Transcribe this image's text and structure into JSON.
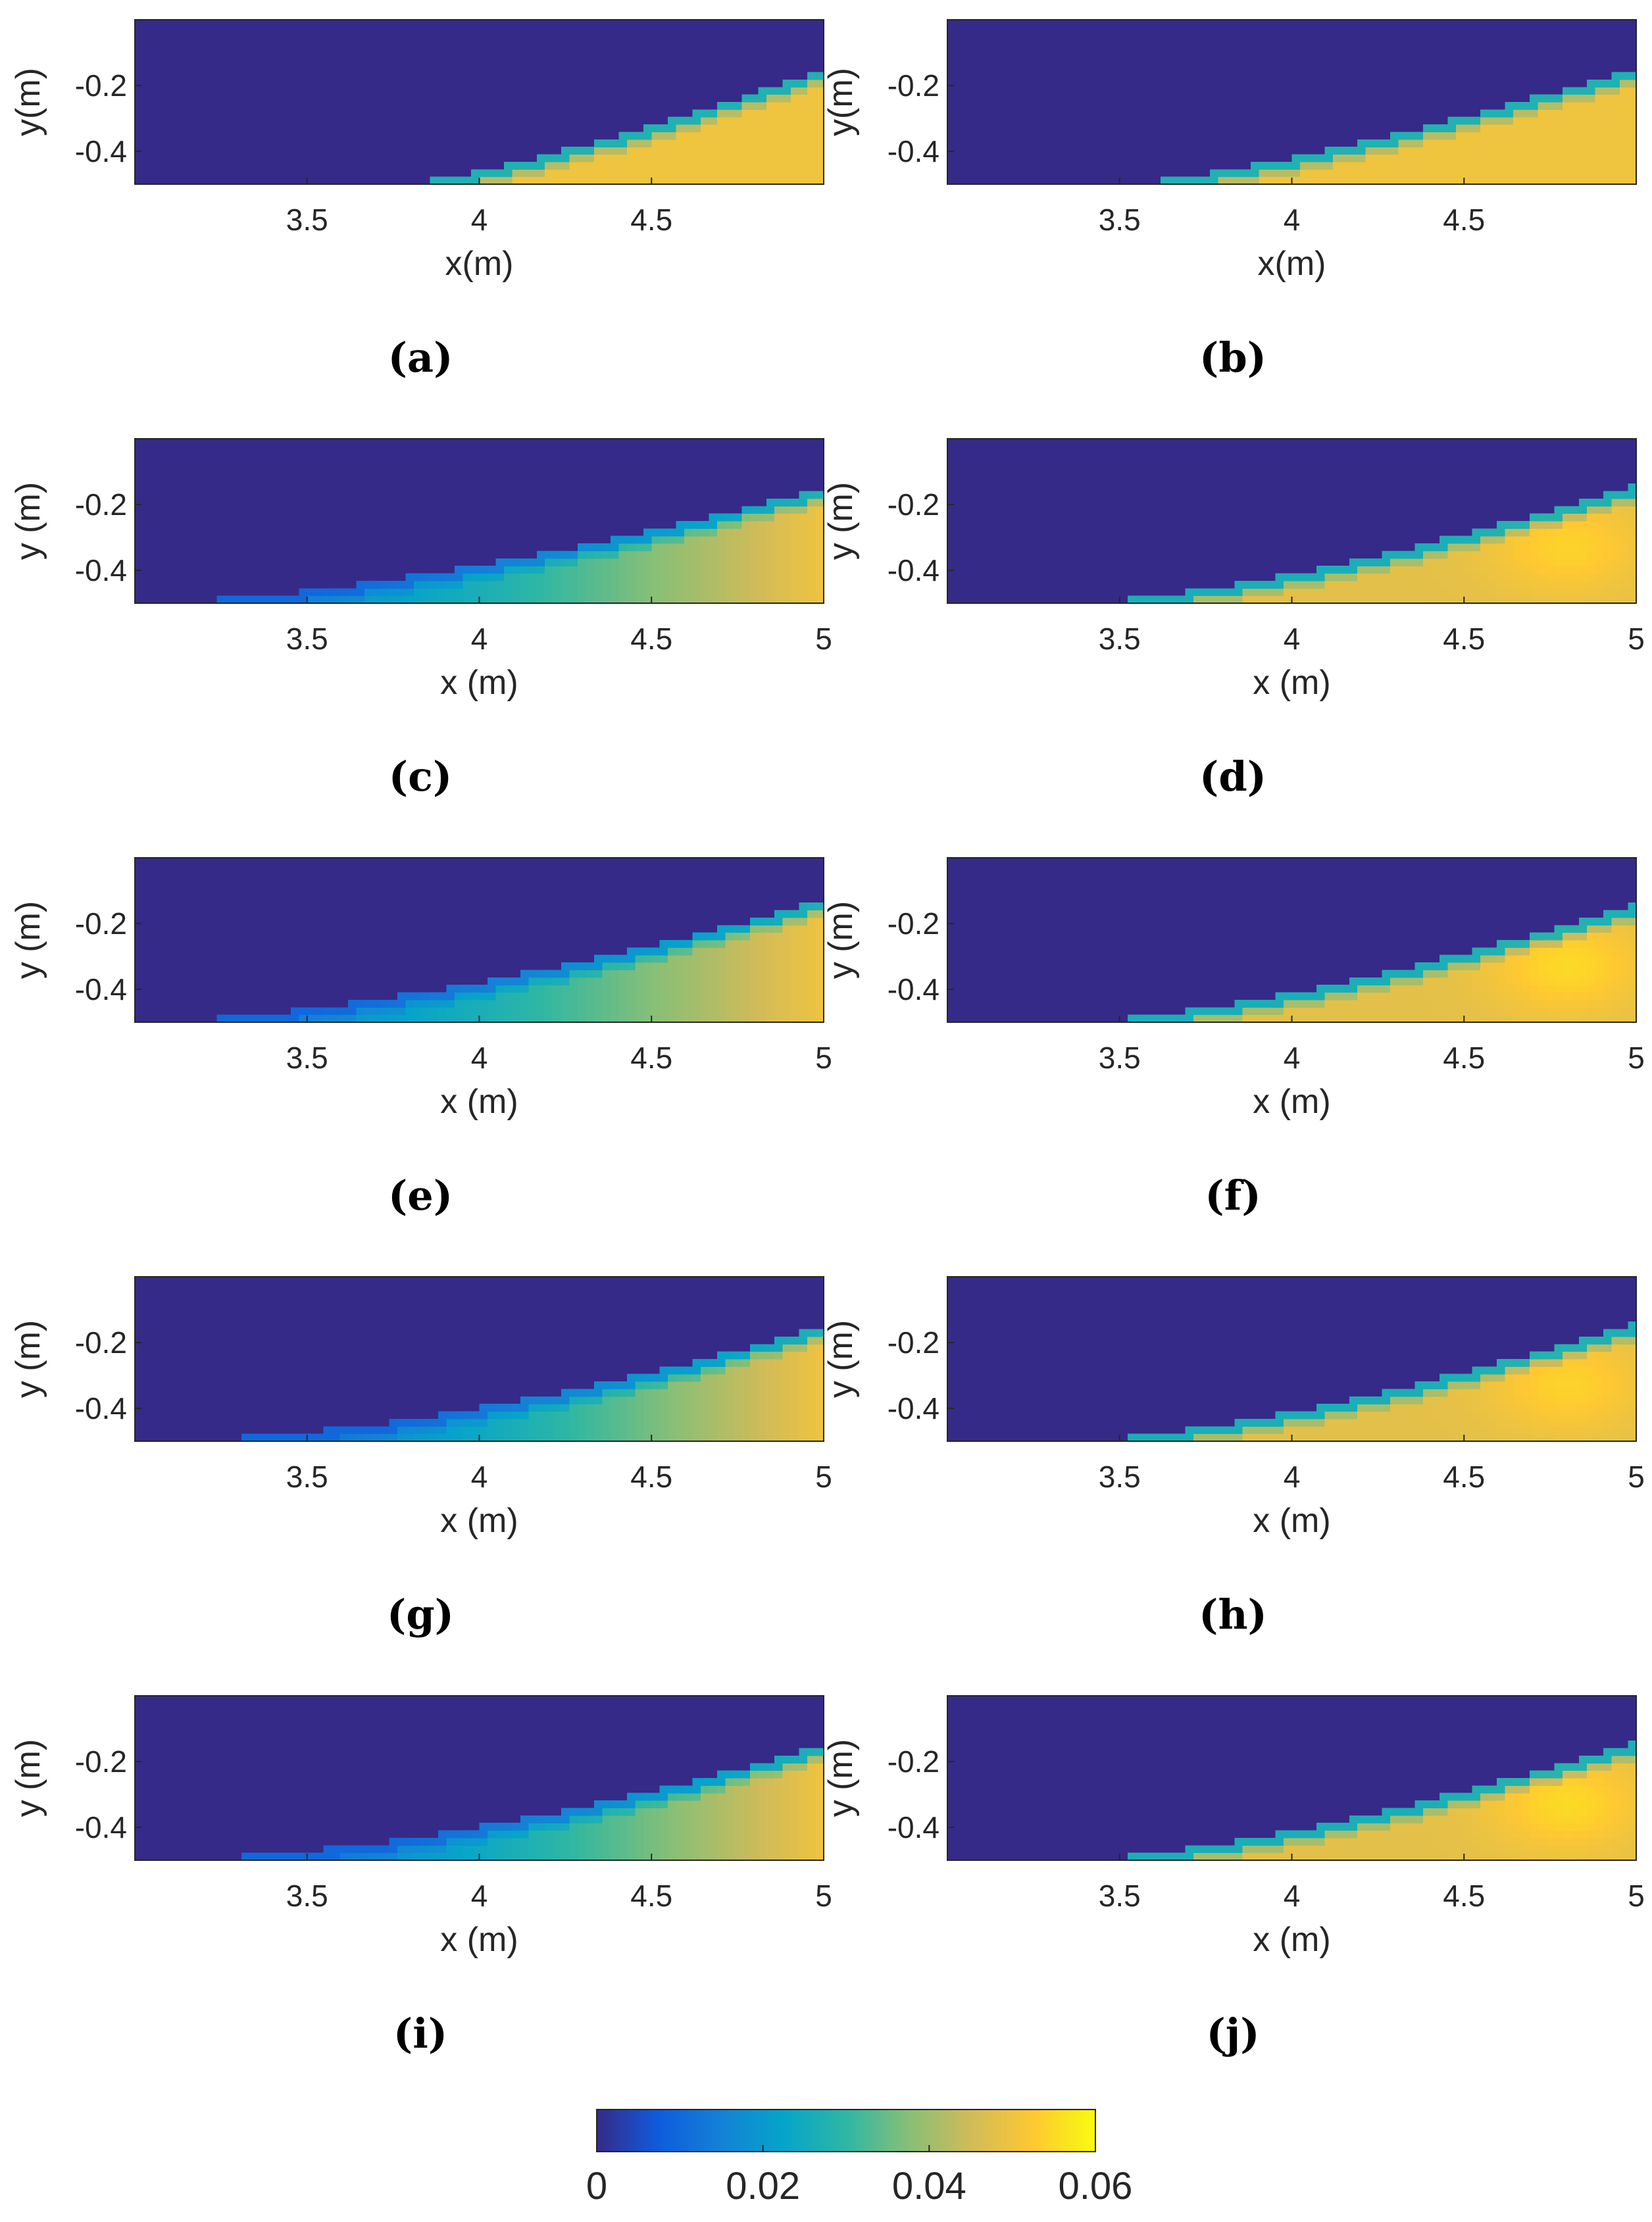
{
  "colormap": [
    "#352a87",
    "#0f5cdd",
    "#1481d6",
    "#06a4ca",
    "#2eb7a4",
    "#87bf77",
    "#d1bb59",
    "#fec832",
    "#f9fb0e"
  ],
  "chart_data": {
    "type": "heatmap",
    "color_range": [
      0,
      0.06
    ],
    "colorbar_ticks": [
      "0",
      "0.02",
      "0.04",
      "0.06"
    ],
    "panels": [
      {
        "label": "(a)",
        "xlabel": "x(m)",
        "ylabel": "y(m)",
        "xlim": [
          3.0,
          5.0
        ],
        "ylim": [
          -0.5,
          0
        ],
        "xticks": [
          "3.5",
          "4",
          "4.5"
        ],
        "yticks": [
          "-0.2",
          "-0.4"
        ],
        "front_x0": 3.77,
        "front_y1": -0.15,
        "front_curve": 1.3,
        "c_tip": 0.02,
        "c_root": 0.05,
        "c_bulk": 0.05,
        "hot": 0.0
      },
      {
        "label": "(b)",
        "xlabel": "x(m)",
        "ylabel": "y(m)",
        "xlim": [
          3.0,
          5.0
        ],
        "ylim": [
          -0.5,
          0
        ],
        "xticks": [
          "3.5",
          "4",
          "4.5"
        ],
        "yticks": [
          "-0.2",
          "-0.4"
        ],
        "front_x0": 3.52,
        "front_y1": -0.15,
        "front_curve": 1.3,
        "c_tip": 0.02,
        "c_root": 0.05,
        "c_bulk": 0.05,
        "hot": 0.0
      },
      {
        "label": "(c)",
        "xlabel": "x (m)",
        "ylabel": "y (m)",
        "xlim": [
          3.0,
          5.0
        ],
        "ylim": [
          -0.5,
          0
        ],
        "xticks": [
          "3.5",
          "4",
          "4.5",
          "5"
        ],
        "yticks": [
          "-0.2",
          "-0.4"
        ],
        "front_x0": 3.0,
        "front_y1": -0.15,
        "front_curve": 1.6,
        "c_tip": 0.012,
        "c_root": 0.05,
        "c_bulk": 0.03,
        "hot": 0.0
      },
      {
        "label": "(d)",
        "xlabel": "x (m)",
        "ylabel": "y (m)",
        "xlim": [
          3.0,
          5.0
        ],
        "ylim": [
          -0.5,
          0
        ],
        "xticks": [
          "3.5",
          "4",
          "4.5",
          "5"
        ],
        "yticks": [
          "-0.2",
          "-0.4"
        ],
        "front_x0": 3.35,
        "front_y1": -0.14,
        "front_curve": 1.5,
        "c_tip": 0.015,
        "c_root": 0.055,
        "c_bulk": 0.048,
        "hot": 0.006
      },
      {
        "label": "(e)",
        "xlabel": "x (m)",
        "ylabel": "y (m)",
        "xlim": [
          3.0,
          5.0
        ],
        "ylim": [
          -0.5,
          0
        ],
        "xticks": [
          "3.5",
          "4",
          "4.5",
          "5"
        ],
        "yticks": [
          "-0.2",
          "-0.4"
        ],
        "front_x0": 3.0,
        "front_y1": -0.13,
        "front_curve": 1.6,
        "c_tip": 0.012,
        "c_root": 0.05,
        "c_bulk": 0.03,
        "hot": 0.0
      },
      {
        "label": "(f)",
        "xlabel": "x (m)",
        "ylabel": "y (m)",
        "xlim": [
          3.0,
          5.0
        ],
        "ylim": [
          -0.5,
          0
        ],
        "xticks": [
          "3.5",
          "4",
          "4.5",
          "5"
        ],
        "yticks": [
          "-0.2",
          "-0.4"
        ],
        "front_x0": 3.35,
        "front_y1": -0.14,
        "front_curve": 1.5,
        "c_tip": 0.015,
        "c_root": 0.055,
        "c_bulk": 0.048,
        "hot": 0.007
      },
      {
        "label": "(g)",
        "xlabel": "x (m)",
        "ylabel": "y (m)",
        "xlim": [
          3.0,
          5.0
        ],
        "ylim": [
          -0.5,
          0
        ],
        "xticks": [
          "3.5",
          "4",
          "4.5",
          "5"
        ],
        "yticks": [
          "-0.2",
          "-0.4"
        ],
        "front_x0": 3.0,
        "front_y1": -0.15,
        "front_curve": 1.8,
        "c_tip": 0.008,
        "c_root": 0.05,
        "c_bulk": 0.025,
        "hot": 0.0
      },
      {
        "label": "(h)",
        "xlabel": "x (m)",
        "ylabel": "y (m)",
        "xlim": [
          3.0,
          5.0
        ],
        "ylim": [
          -0.5,
          0
        ],
        "xticks": [
          "3.5",
          "4",
          "4.5",
          "5"
        ],
        "yticks": [
          "-0.2",
          "-0.4"
        ],
        "front_x0": 3.35,
        "front_y1": -0.14,
        "front_curve": 1.5,
        "c_tip": 0.015,
        "c_root": 0.055,
        "c_bulk": 0.048,
        "hot": 0.006
      },
      {
        "label": "(i)",
        "xlabel": "x (m)",
        "ylabel": "y (m)",
        "xlim": [
          3.0,
          5.0
        ],
        "ylim": [
          -0.5,
          0
        ],
        "xticks": [
          "3.5",
          "4",
          "4.5",
          "5"
        ],
        "yticks": [
          "-0.2",
          "-0.4"
        ],
        "front_x0": 3.0,
        "front_y1": -0.15,
        "front_curve": 1.8,
        "c_tip": 0.008,
        "c_root": 0.05,
        "c_bulk": 0.025,
        "hot": 0.0
      },
      {
        "label": "(j)",
        "xlabel": "x (m)",
        "ylabel": "y (m)",
        "xlim": [
          3.0,
          5.0
        ],
        "ylim": [
          -0.5,
          0
        ],
        "xticks": [
          "3.5",
          "4",
          "4.5",
          "5"
        ],
        "yticks": [
          "-0.2",
          "-0.4"
        ],
        "front_x0": 3.35,
        "front_y1": -0.14,
        "front_curve": 1.5,
        "c_tip": 0.015,
        "c_root": 0.055,
        "c_bulk": 0.048,
        "hot": 0.007
      }
    ]
  }
}
